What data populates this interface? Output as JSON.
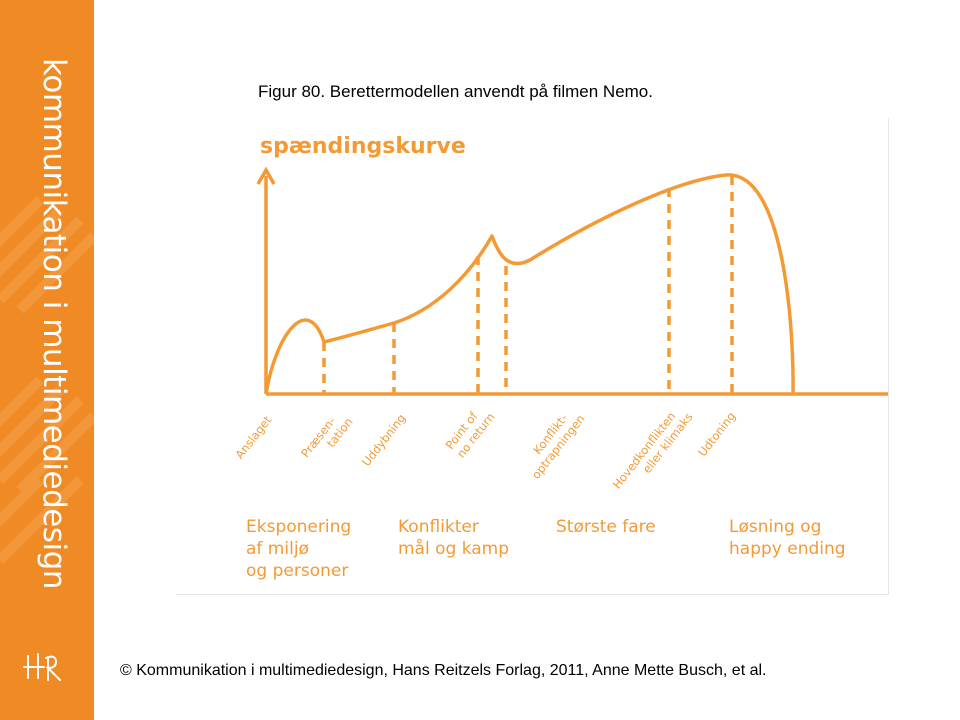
{
  "sidebar": {
    "title": "kommunikation i multimediedesign",
    "logo_icon": "hr-publisher-logo-icon",
    "background_color": "#f08a24"
  },
  "figure": {
    "caption": "Figur 80. Berettermodellen anvendt på filmen Nemo."
  },
  "diagram": {
    "axis_label": "spændingskurve",
    "curve_color": "#f39a35",
    "text_color": "#f39a35",
    "stages": [
      {
        "lines": [
          "Anslaget"
        ]
      },
      {
        "lines": [
          "Præsen-",
          "tation"
        ]
      },
      {
        "lines": [
          "Uddybning"
        ]
      },
      {
        "lines": [
          "Point of",
          "no return"
        ]
      },
      {
        "lines": [
          "Konflikt-",
          "optrapningen"
        ]
      },
      {
        "lines": [
          "Hovedkonflikten",
          "eller klimaks"
        ]
      },
      {
        "lines": [
          "Udtoning"
        ]
      }
    ],
    "phases": [
      {
        "lines": [
          "Eksponering",
          "af miljø",
          "og personer"
        ]
      },
      {
        "lines": [
          "Konflikter",
          "mål og kamp"
        ]
      },
      {
        "lines": [
          "Største fare"
        ]
      },
      {
        "lines": [
          "Løsning og",
          "happy ending"
        ]
      }
    ]
  },
  "footer": {
    "copyright": "© Kommunikation i multimediedesign, Hans Reitzels Forlag, 2011, Anne Mette Busch, et al."
  }
}
